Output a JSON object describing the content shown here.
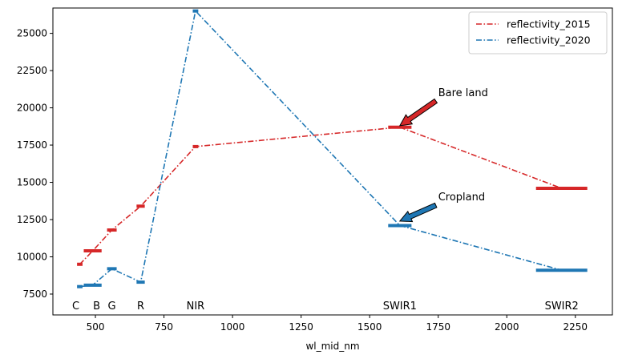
{
  "chart_data": {
    "type": "line",
    "title": "",
    "xlabel": "wl_mid_nm",
    "ylabel": "",
    "xlim": [
      345,
      2385
    ],
    "ylim": [
      6100,
      26700
    ],
    "xticks": [
      500,
      750,
      1000,
      1250,
      1500,
      1750,
      2000,
      2250
    ],
    "yticks": [
      7500,
      10000,
      12500,
      15000,
      17500,
      20000,
      22500,
      25000
    ],
    "grid": false,
    "legend": "top-right",
    "bands": [
      {
        "name": "C",
        "x": 443,
        "width": 20
      },
      {
        "name": "B",
        "x": 490,
        "width": 65
      },
      {
        "name": "G",
        "x": 560,
        "width": 35
      },
      {
        "name": "R",
        "x": 665,
        "width": 30
      },
      {
        "name": "NIR",
        "x": 865,
        "width": 20
      },
      {
        "name": "SWIR1",
        "x": 1610,
        "width": 85
      },
      {
        "name": "SWIR2",
        "x": 2200,
        "width": 187
      }
    ],
    "series": [
      {
        "name": "reflectivity_2015",
        "color": "#d62728",
        "x": [
          443,
          490,
          560,
          665,
          865,
          1610,
          2200
        ],
        "values": [
          9500,
          10400,
          11800,
          13400,
          17400,
          18700,
          14600
        ]
      },
      {
        "name": "reflectivity_2020",
        "color": "#1f77b4",
        "x": [
          443,
          490,
          560,
          665,
          865,
          1610,
          2200
        ],
        "values": [
          8000,
          8100,
          9200,
          8300,
          26500,
          12100,
          9100
        ]
      }
    ],
    "annotations": [
      {
        "text": "Bare land",
        "x": 1610,
        "y": 18800,
        "text_x": 1750,
        "text_y": 21000,
        "color": "#d62728"
      },
      {
        "text": "Cropland",
        "x": 1610,
        "y": 12400,
        "text_x": 1750,
        "text_y": 14000,
        "color": "#1f77b4"
      }
    ]
  }
}
